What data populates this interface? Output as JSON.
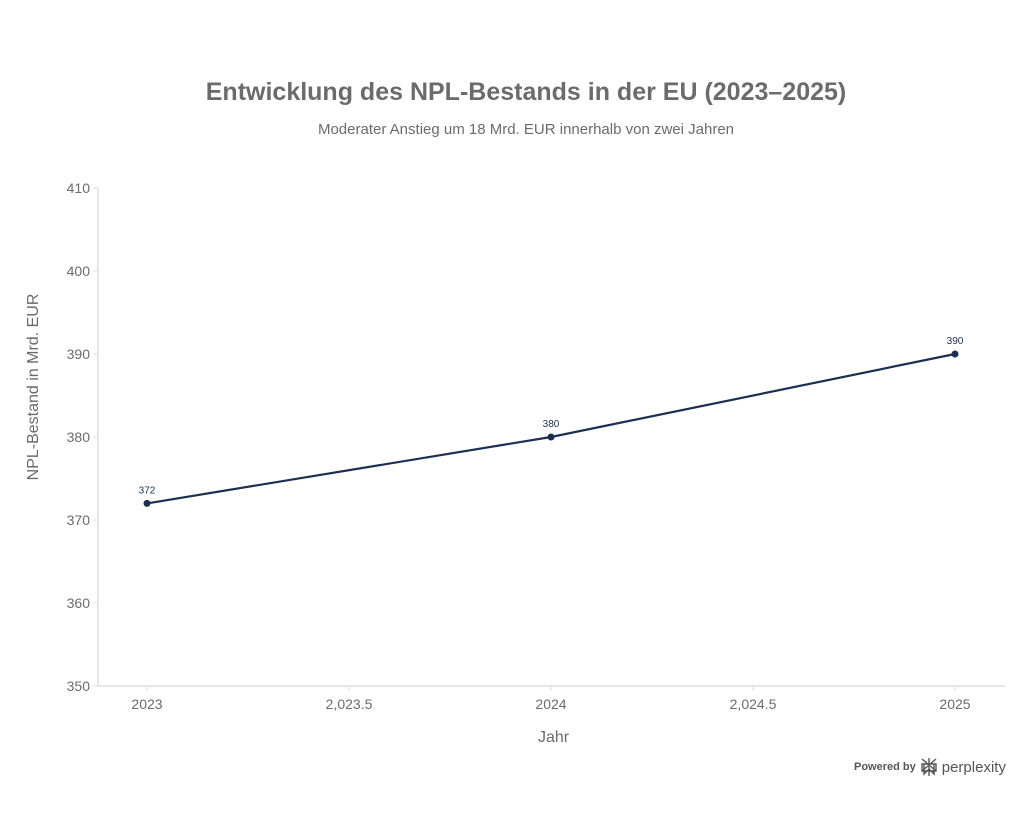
{
  "chart_data": {
    "type": "line",
    "title": "Entwicklung des NPL-Bestands in der EU (2023–2025)",
    "subtitle": "Moderater Anstieg um 18 Mrd. EUR innerhalb von zwei Jahren",
    "xlabel": "Jahr",
    "ylabel": "NPL-Bestand in Mrd. EUR",
    "x": [
      2023,
      2024,
      2025
    ],
    "values": [
      372,
      380,
      390
    ],
    "data_labels": [
      "372",
      "380",
      "390"
    ],
    "xlim": [
      2022.88,
      2025.12
    ],
    "ylim": [
      350,
      410
    ],
    "x_ticks": [
      "2023",
      "2,023.5",
      "2024",
      "2,024.5",
      "2025"
    ],
    "x_tick_values": [
      2023,
      2023.5,
      2024,
      2024.5,
      2025
    ],
    "y_ticks": [
      "350",
      "360",
      "370",
      "380",
      "390",
      "400",
      "410"
    ],
    "y_tick_values": [
      350,
      360,
      370,
      380,
      390,
      400,
      410
    ],
    "grid": false,
    "line_color": "#1c2f50",
    "text_color": "#6b6b6b"
  },
  "footer": {
    "powered_by": "Powered by",
    "brand": "perplexity",
    "logo_icon": "perplexity-logo-icon"
  }
}
